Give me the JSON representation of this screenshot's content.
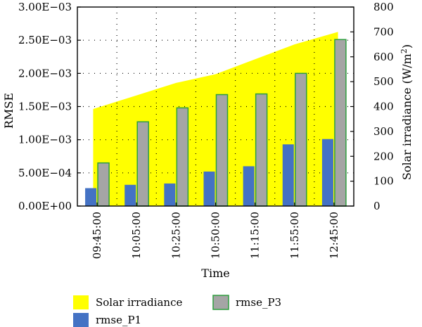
{
  "chart_data": {
    "type": "bar",
    "categories": [
      "09:45:00",
      "10:05:00",
      "10:25:00",
      "10:50:00",
      "11:15:00",
      "11:55:00",
      "12:45:00"
    ],
    "series": [
      {
        "name": "rmse_P1",
        "values": [
          0.00027,
          0.00032,
          0.00034,
          0.00052,
          0.0006,
          0.00093,
          0.00101
        ],
        "color": "#4472c4",
        "axis": "left"
      },
      {
        "name": "rmse_P3",
        "values": [
          0.00065,
          0.00127,
          0.00148,
          0.00168,
          0.00169,
          0.002,
          0.00251
        ],
        "color": "#a5a5a5",
        "edge": "#2e9e3e",
        "axis": "left"
      },
      {
        "name": "Solar irradiance",
        "values": [
          390,
          445,
          495,
          530,
          590,
          650,
          700
        ],
        "color": "#ffff00",
        "axis": "right",
        "render": "area"
      }
    ],
    "xlabel": "Time",
    "ylabel": "RMSE",
    "y2label": "Solar irradiance (W/m",
    "y2label_sup": "2",
    "y2label_end": ")",
    "ylim": [
      0,
      0.003
    ],
    "y2lim": [
      0,
      800
    ],
    "yticks": [
      "0.00E+00",
      "5.00E−04",
      "1.00E−03",
      "1.50E−03",
      "2.00E−03",
      "2.50E−03",
      "3.00E−03"
    ],
    "y2ticks": [
      "0",
      "100",
      "200",
      "300",
      "400",
      "500",
      "600",
      "700",
      "800"
    ],
    "grid": "dotted",
    "legend": {
      "position": "bottom",
      "items": [
        "Solar irradiance",
        "rmse_P3",
        "rmse_P1"
      ]
    }
  }
}
